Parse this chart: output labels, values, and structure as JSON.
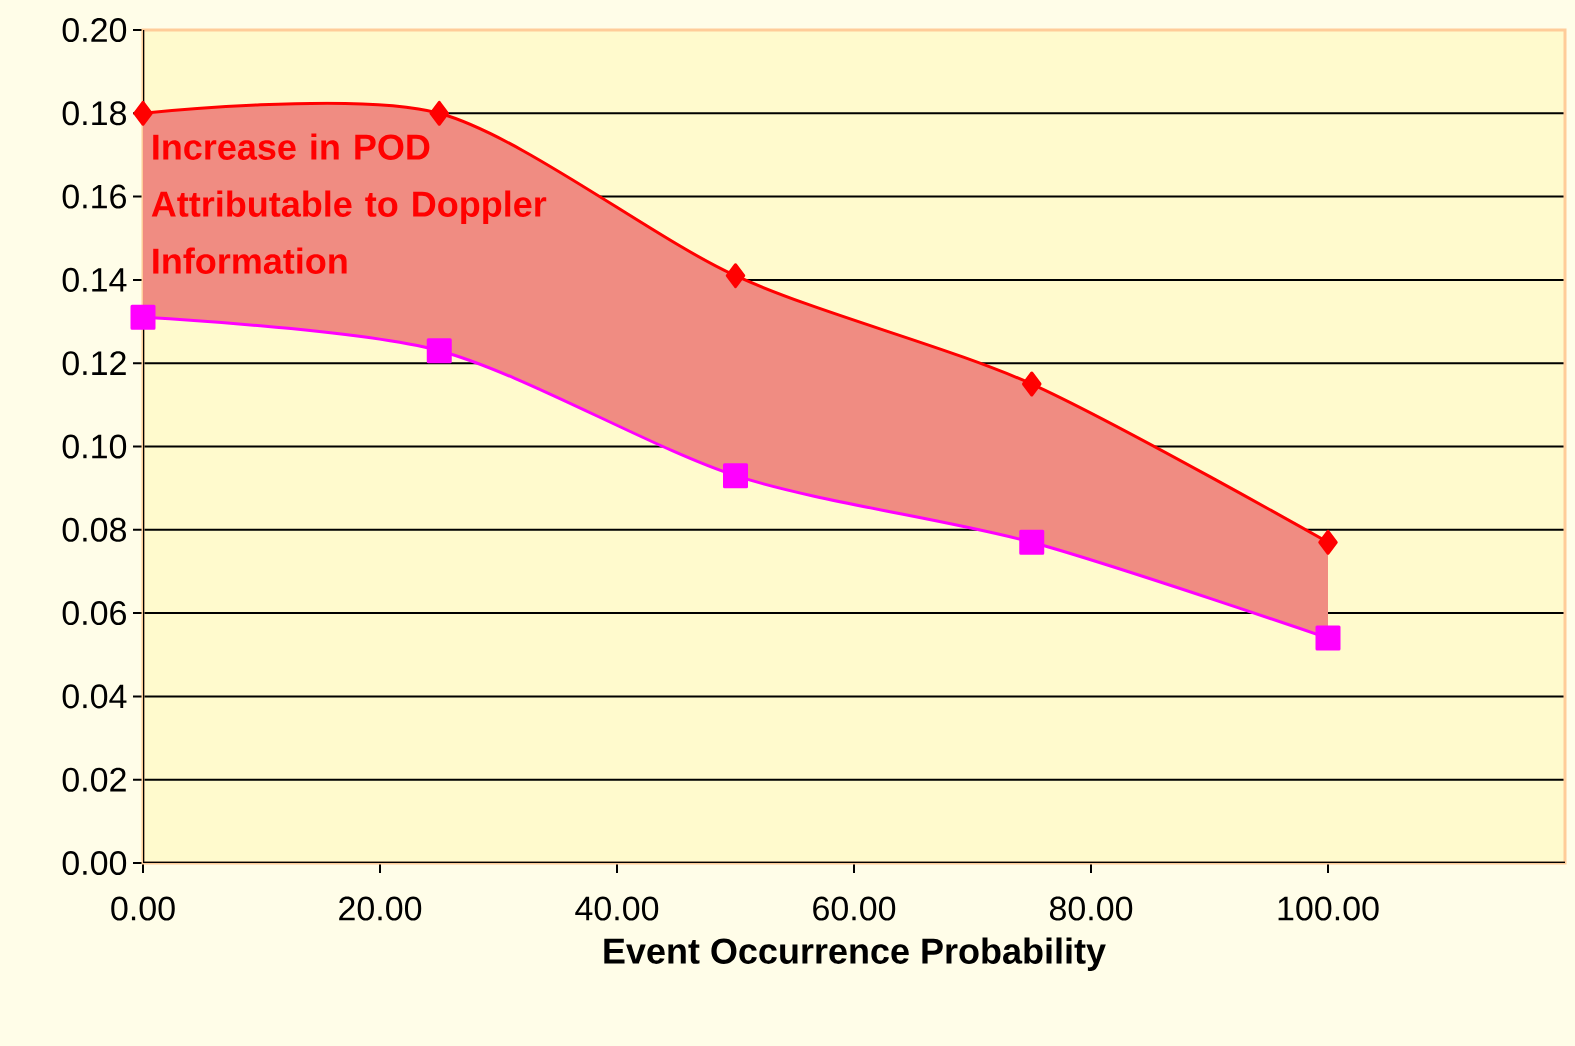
{
  "chart_data": {
    "type": "line",
    "xlabel": "Event Occurrence Probability",
    "x": [
      0,
      25,
      50,
      75,
      100
    ],
    "series": [
      {
        "color": "#ff0000",
        "marker": "diamond",
        "values": [
          0.18,
          0.18,
          0.141,
          0.115,
          0.077
        ],
        "lower": [
          0.131,
          0.123,
          0.093,
          0.077,
          0.054
        ],
        "upper": [
          0.18,
          0.18,
          0.141,
          0.115,
          0.077
        ]
      },
      {
        "color": "#ff00ff",
        "marker": "square",
        "values": [
          0.131,
          0.123,
          0.093,
          0.077,
          0.054
        ]
      }
    ],
    "xlim": [
      0,
      120
    ],
    "ylim": [
      0,
      0.2
    ],
    "xticks": [
      {
        "value": 0,
        "label": "0.00"
      },
      {
        "value": 20,
        "label": "20.00"
      },
      {
        "value": 40,
        "label": "40.00"
      },
      {
        "value": 60,
        "label": "60.00"
      },
      {
        "value": 80,
        "label": "80.00"
      },
      {
        "value": 100,
        "label": "100.00"
      }
    ],
    "yticks": [
      {
        "value": 0,
        "label": "0.00"
      },
      {
        "value": 0.02,
        "label": "0.02"
      },
      {
        "value": 0.04,
        "label": "0.04"
      },
      {
        "value": 0.06,
        "label": "0.06"
      },
      {
        "value": 0.08,
        "label": "0.08"
      },
      {
        "value": 0.1,
        "label": "0.10"
      },
      {
        "value": 0.12,
        "label": "0.12"
      },
      {
        "value": 0.14,
        "label": "0.14"
      },
      {
        "value": 0.16,
        "label": "0.16"
      },
      {
        "value": 0.18,
        "label": "0.18"
      },
      {
        "value": 0.2,
        "label": "0.20"
      }
    ],
    "grid": "y",
    "annotations": [
      "Increase in POD Attributable to Doppler Information"
    ]
  }
}
